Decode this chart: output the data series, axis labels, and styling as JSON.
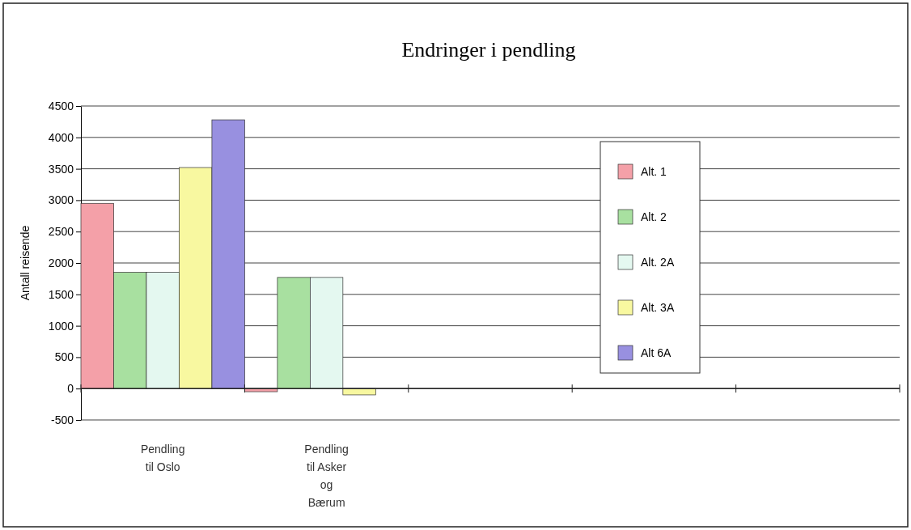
{
  "chart_data": {
    "type": "bar",
    "title": "Endringer i pendling",
    "ylabel": "Antall reisende",
    "categories": [
      "Pendling\ntil Oslo",
      "Pendling\ntil Asker\nog\nBærum",
      null,
      null,
      null
    ],
    "series": [
      {
        "name": "Alt. 1",
        "color": "#f4a0a8",
        "values": [
          2950,
          -50,
          null,
          null,
          null
        ]
      },
      {
        "name": "Alt. 2",
        "color": "#a8e0a0",
        "values": [
          1850,
          1770,
          null,
          null,
          null
        ]
      },
      {
        "name": "Alt. 2A",
        "color": "#e4f8f0",
        "values": [
          1850,
          1770,
          null,
          null,
          null
        ]
      },
      {
        "name": "Alt. 3A",
        "color": "#f8f8a0",
        "values": [
          3520,
          -100,
          null,
          null,
          null
        ]
      },
      {
        "name": "Alt 6A",
        "color": "#9890e0",
        "values": [
          4280,
          null,
          null,
          null,
          null
        ]
      }
    ],
    "ylim": [
      -500,
      4500
    ],
    "yticks": [
      -500,
      0,
      500,
      1000,
      1500,
      2000,
      2500,
      3000,
      3500,
      4000,
      4500
    ],
    "grid": "y",
    "legend": "right"
  }
}
